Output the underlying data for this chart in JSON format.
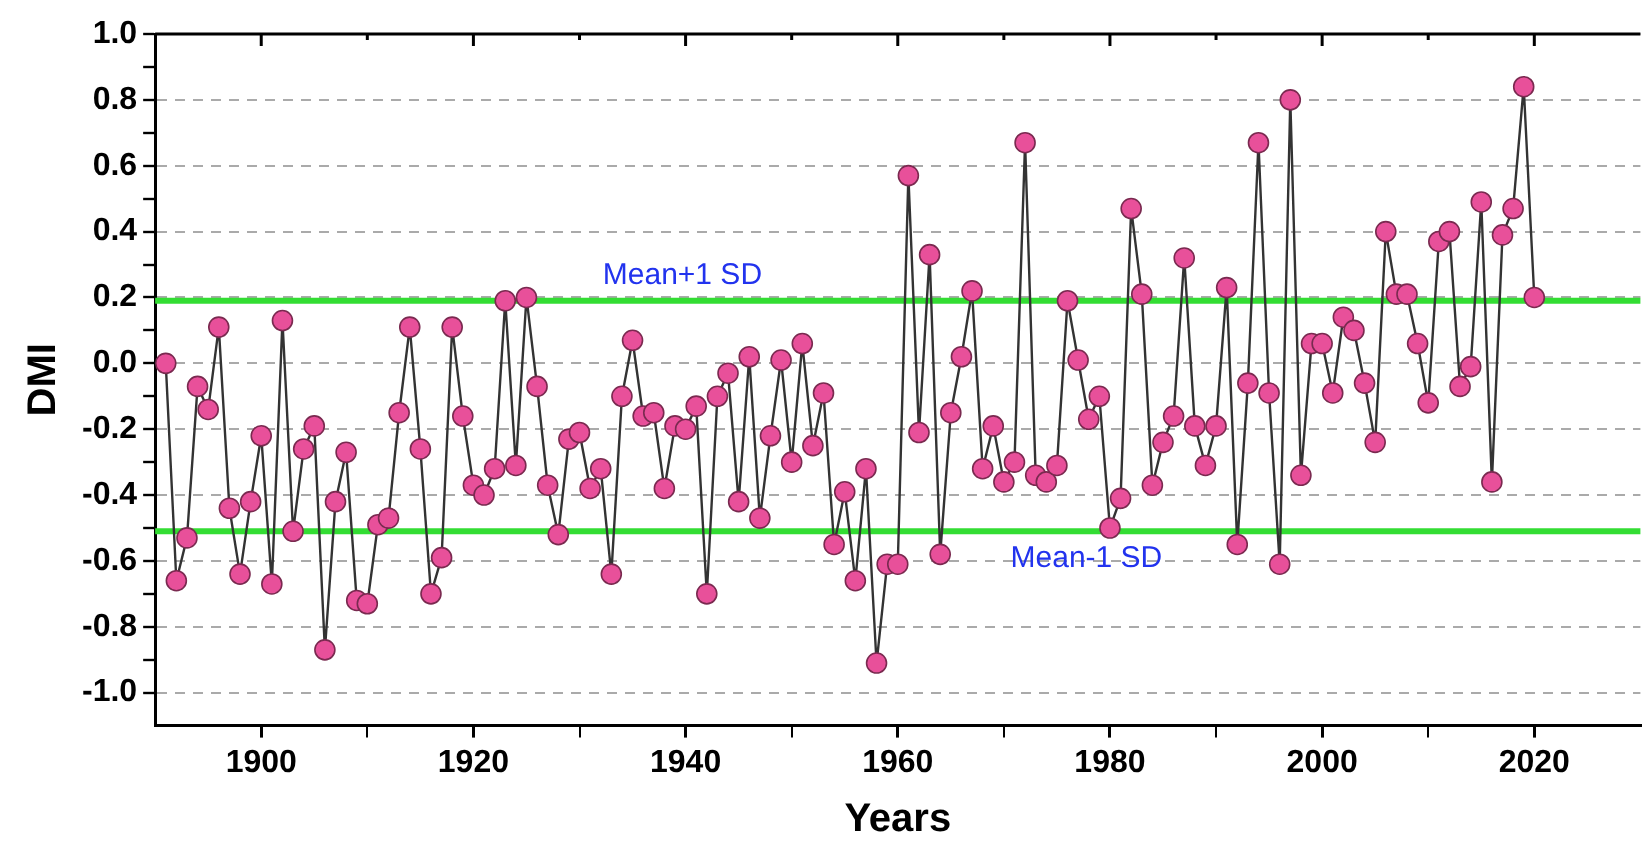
{
  "chart_data": {
    "type": "line",
    "xlabel": "Years",
    "ylabel": "DMI",
    "x": [
      1891,
      1892,
      1893,
      1894,
      1895,
      1896,
      1897,
      1898,
      1899,
      1900,
      1901,
      1902,
      1903,
      1904,
      1905,
      1906,
      1907,
      1908,
      1909,
      1910,
      1911,
      1912,
      1913,
      1914,
      1915,
      1916,
      1917,
      1918,
      1919,
      1920,
      1921,
      1922,
      1923,
      1924,
      1925,
      1926,
      1927,
      1928,
      1929,
      1930,
      1931,
      1932,
      1933,
      1934,
      1935,
      1936,
      1937,
      1938,
      1939,
      1940,
      1941,
      1942,
      1943,
      1944,
      1945,
      1946,
      1947,
      1948,
      1949,
      1950,
      1951,
      1952,
      1953,
      1954,
      1955,
      1956,
      1957,
      1958,
      1959,
      1960,
      1961,
      1962,
      1963,
      1964,
      1965,
      1966,
      1967,
      1968,
      1969,
      1970,
      1971,
      1972,
      1973,
      1974,
      1975,
      1976,
      1977,
      1978,
      1979,
      1980,
      1981,
      1982,
      1983,
      1984,
      1985,
      1986,
      1987,
      1988,
      1989,
      1990,
      1991,
      1992,
      1993,
      1994,
      1995,
      1996,
      1997,
      1998,
      1999,
      2000,
      2001,
      2002,
      2003,
      2004,
      2005,
      2006,
      2007,
      2008,
      2009,
      2010,
      2011,
      2012,
      2013,
      2014,
      2015,
      2016,
      2017,
      2018,
      2019,
      2020
    ],
    "series": [
      {
        "color": "#e8509a",
        "values": [
          0.0,
          -0.66,
          -0.53,
          -0.07,
          -0.14,
          0.11,
          -0.44,
          -0.64,
          -0.42,
          -0.22,
          -0.67,
          0.13,
          -0.51,
          -0.26,
          -0.19,
          -0.87,
          -0.42,
          -0.27,
          -0.72,
          -0.73,
          -0.49,
          -0.47,
          -0.15,
          0.11,
          -0.26,
          -0.7,
          -0.59,
          0.11,
          -0.16,
          -0.37,
          -0.4,
          -0.32,
          0.19,
          -0.31,
          0.2,
          -0.07,
          -0.37,
          -0.52,
          -0.23,
          -0.21,
          -0.38,
          -0.32,
          -0.64,
          -0.1,
          0.07,
          -0.16,
          -0.15,
          -0.38,
          -0.19,
          -0.2,
          -0.13,
          -0.7,
          -0.1,
          -0.03,
          -0.42,
          0.02,
          -0.47,
          -0.22,
          0.01,
          -0.3,
          0.06,
          -0.25,
          -0.09,
          -0.55,
          -0.39,
          -0.66,
          -0.32,
          -0.91,
          -0.61,
          -0.61,
          0.57,
          -0.21,
          0.33,
          -0.58,
          -0.15,
          0.02,
          0.22,
          -0.32,
          -0.19,
          -0.36,
          -0.3,
          0.67,
          -0.34,
          -0.36,
          -0.31,
          0.19,
          0.01,
          -0.17,
          -0.1,
          -0.5,
          -0.41,
          0.47,
          0.21,
          -0.37,
          -0.24,
          -0.16,
          0.32,
          -0.19,
          -0.31,
          -0.19,
          0.23,
          -0.55,
          -0.06,
          0.67,
          -0.09,
          -0.61,
          0.8,
          -0.34,
          0.06,
          0.06,
          -0.09,
          0.14,
          0.1,
          -0.06,
          -0.24,
          0.4,
          0.21,
          0.21,
          0.06,
          -0.12,
          0.37,
          0.4,
          -0.07,
          -0.01,
          0.49,
          -0.36,
          0.39,
          0.47,
          0.84,
          0.2
        ]
      }
    ],
    "xlim": [
      1890,
      2030
    ],
    "xticks": [
      1900,
      {
        "value": 1910,
        "label": null
      },
      1920,
      {
        "value": 1930,
        "label": null
      },
      1940,
      {
        "value": 1950,
        "label": null
      },
      1960,
      {
        "value": 1970,
        "label": null
      },
      1980,
      {
        "value": 1990,
        "label": null
      },
      2000,
      {
        "value": 2010,
        "label": null
      },
      2020
    ],
    "ylim": [
      -1.1,
      1.0
    ],
    "yticks": [
      {
        "value": -1.0,
        "label": "-1.0"
      },
      {
        "value": -0.9,
        "label": null
      },
      -0.8,
      {
        "value": -0.7,
        "label": null
      },
      -0.6,
      {
        "value": -0.5,
        "label": null
      },
      -0.4,
      {
        "value": -0.3,
        "label": null
      },
      -0.2,
      {
        "value": -0.1,
        "label": null
      },
      {
        "value": 0,
        "label": "0.0"
      },
      {
        "value": 0.1,
        "label": null
      },
      0.2,
      {
        "value": 0.3,
        "label": null
      },
      0.4,
      {
        "value": 0.5,
        "label": null
      },
      0.6,
      {
        "value": 0.7,
        "label": null
      },
      0.8,
      {
        "value": 0.9,
        "label": null
      },
      {
        "value": 1.0,
        "label": "1.0"
      }
    ],
    "ref_lines": [
      {
        "axis": "y",
        "value": 0.19,
        "label": "Mean+1 SD",
        "color": "#33dd33"
      },
      {
        "axis": "y",
        "value": -0.51,
        "label": "Mean-1 SD",
        "color": "#33dd33"
      }
    ],
    "grid": "y",
    "legend": false,
    "marker": "circle",
    "line_style": "solid"
  }
}
